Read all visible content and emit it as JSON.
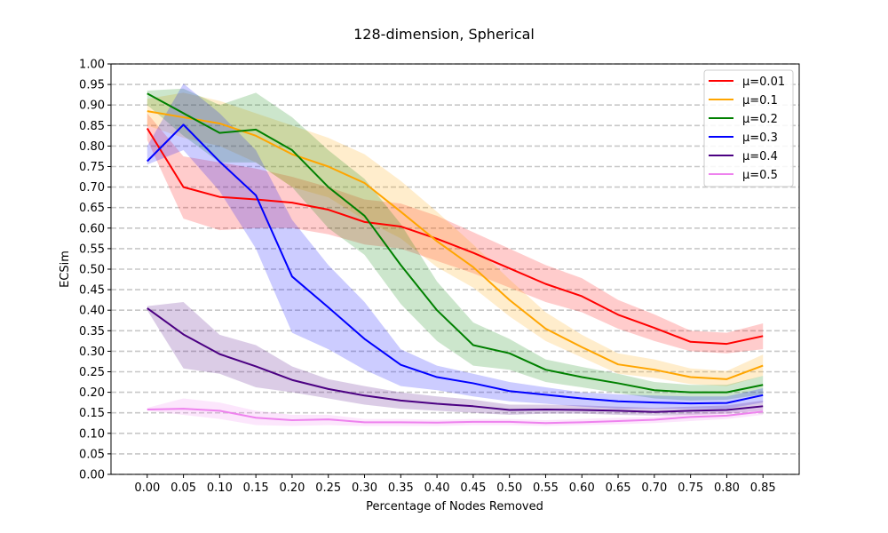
{
  "chart_data": {
    "type": "line",
    "title": "128-dimension, Spherical",
    "xlabel": "Percentage of Nodes Removed",
    "ylabel": "ECSim",
    "xlim": [
      -0.05,
      0.9
    ],
    "ylim": [
      0.0,
      1.0
    ],
    "x": [
      0.0,
      0.05,
      0.1,
      0.15,
      0.2,
      0.25,
      0.3,
      0.35,
      0.4,
      0.45,
      0.5,
      0.55,
      0.6,
      0.65,
      0.7,
      0.75,
      0.8,
      0.85
    ],
    "x_tick_labels": [
      "0.00",
      "0.05",
      "0.10",
      "0.15",
      "0.20",
      "0.25",
      "0.30",
      "0.35",
      "0.40",
      "0.45",
      "0.50",
      "0.55",
      "0.60",
      "0.65",
      "0.70",
      "0.75",
      "0.80",
      "0.85"
    ],
    "y_ticks": [
      0.0,
      0.05,
      0.1,
      0.15,
      0.2,
      0.25,
      0.3,
      0.35,
      0.4,
      0.45,
      0.5,
      0.55,
      0.6,
      0.65,
      0.7,
      0.75,
      0.8,
      0.85,
      0.9,
      0.95,
      1.0
    ],
    "y_tick_labels": [
      "0.00",
      "0.05",
      "0.10",
      "0.15",
      "0.20",
      "0.25",
      "0.30",
      "0.35",
      "0.40",
      "0.45",
      "0.50",
      "0.55",
      "0.60",
      "0.65",
      "0.70",
      "0.75",
      "0.80",
      "0.85",
      "0.90",
      "0.95",
      "1.00"
    ],
    "grid": "horizontal dashed",
    "legend_position": "top-right",
    "series": [
      {
        "name": "μ=0.01",
        "color": "#ff0000",
        "mean": [
          0.843,
          0.7,
          0.676,
          0.67,
          0.662,
          0.645,
          0.615,
          0.604,
          0.574,
          0.54,
          0.502,
          0.464,
          0.434,
          0.389,
          0.357,
          0.323,
          0.318,
          0.337
        ],
        "lower": [
          0.815,
          0.623,
          0.595,
          0.6,
          0.6,
          0.585,
          0.56,
          0.55,
          0.52,
          0.49,
          0.455,
          0.42,
          0.395,
          0.355,
          0.325,
          0.3,
          0.295,
          0.305
        ],
        "upper": [
          0.88,
          0.775,
          0.76,
          0.745,
          0.725,
          0.7,
          0.67,
          0.66,
          0.63,
          0.59,
          0.55,
          0.51,
          0.478,
          0.425,
          0.39,
          0.35,
          0.345,
          0.368
        ]
      },
      {
        "name": "μ=0.1",
        "color": "#ffa500",
        "mean": [
          0.885,
          0.87,
          0.855,
          0.825,
          0.78,
          0.75,
          0.71,
          0.64,
          0.568,
          0.505,
          0.425,
          0.355,
          0.31,
          0.268,
          0.255,
          0.237,
          0.232,
          0.265
        ],
        "lower": [
          0.85,
          0.82,
          0.8,
          0.76,
          0.7,
          0.675,
          0.62,
          0.575,
          0.505,
          0.455,
          0.385,
          0.325,
          0.285,
          0.245,
          0.235,
          0.22,
          0.215,
          0.24
        ],
        "upper": [
          0.915,
          0.93,
          0.91,
          0.88,
          0.85,
          0.82,
          0.78,
          0.715,
          0.64,
          0.56,
          0.475,
          0.395,
          0.34,
          0.295,
          0.28,
          0.258,
          0.252,
          0.292
        ]
      },
      {
        "name": "μ=0.2",
        "color": "#008000",
        "mean": [
          0.928,
          0.88,
          0.832,
          0.84,
          0.79,
          0.7,
          0.63,
          0.51,
          0.4,
          0.315,
          0.295,
          0.255,
          0.237,
          0.222,
          0.205,
          0.2,
          0.2,
          0.218
        ],
        "lower": [
          0.9,
          0.825,
          0.76,
          0.76,
          0.7,
          0.6,
          0.535,
          0.415,
          0.325,
          0.265,
          0.255,
          0.225,
          0.212,
          0.198,
          0.185,
          0.18,
          0.182,
          0.195
        ],
        "upper": [
          0.935,
          0.94,
          0.9,
          0.93,
          0.87,
          0.79,
          0.72,
          0.61,
          0.47,
          0.37,
          0.33,
          0.28,
          0.262,
          0.245,
          0.225,
          0.218,
          0.218,
          0.24
        ]
      },
      {
        "name": "μ=0.3",
        "color": "#0000ff",
        "mean": [
          0.763,
          0.852,
          0.762,
          0.68,
          0.482,
          0.407,
          0.33,
          0.267,
          0.237,
          0.222,
          0.203,
          0.194,
          0.185,
          0.178,
          0.175,
          0.173,
          0.174,
          0.193
        ],
        "lower": [
          0.755,
          0.79,
          0.69,
          0.55,
          0.345,
          0.305,
          0.255,
          0.215,
          0.205,
          0.19,
          0.178,
          0.172,
          0.165,
          0.16,
          0.16,
          0.16,
          0.16,
          0.175
        ],
        "upper": [
          0.8,
          0.952,
          0.88,
          0.79,
          0.62,
          0.51,
          0.42,
          0.305,
          0.265,
          0.245,
          0.225,
          0.212,
          0.2,
          0.195,
          0.192,
          0.19,
          0.19,
          0.21
        ]
      },
      {
        "name": "μ=0.4",
        "color": "#4b0082",
        "mean": [
          0.405,
          0.341,
          0.293,
          0.263,
          0.23,
          0.208,
          0.192,
          0.18,
          0.172,
          0.166,
          0.157,
          0.158,
          0.157,
          0.155,
          0.152,
          0.155,
          0.157,
          0.166
        ],
        "lower": [
          0.4,
          0.258,
          0.245,
          0.212,
          0.2,
          0.185,
          0.17,
          0.16,
          0.155,
          0.15,
          0.145,
          0.148,
          0.148,
          0.145,
          0.143,
          0.145,
          0.148,
          0.155
        ],
        "upper": [
          0.41,
          0.42,
          0.34,
          0.315,
          0.263,
          0.232,
          0.215,
          0.2,
          0.19,
          0.182,
          0.17,
          0.17,
          0.168,
          0.165,
          0.162,
          0.165,
          0.168,
          0.18
        ]
      },
      {
        "name": "μ=0.5",
        "color": "#ee82ee",
        "mean": [
          0.158,
          0.16,
          0.155,
          0.138,
          0.132,
          0.134,
          0.127,
          0.127,
          0.126,
          0.128,
          0.128,
          0.125,
          0.127,
          0.13,
          0.133,
          0.14,
          0.143,
          0.153
        ],
        "lower": [
          0.155,
          0.145,
          0.135,
          0.12,
          0.118,
          0.12,
          0.118,
          0.118,
          0.118,
          0.12,
          0.12,
          0.118,
          0.12,
          0.122,
          0.125,
          0.13,
          0.135,
          0.145
        ],
        "upper": [
          0.162,
          0.185,
          0.175,
          0.155,
          0.145,
          0.145,
          0.135,
          0.135,
          0.133,
          0.135,
          0.135,
          0.132,
          0.135,
          0.138,
          0.14,
          0.15,
          0.152,
          0.162
        ]
      }
    ]
  }
}
